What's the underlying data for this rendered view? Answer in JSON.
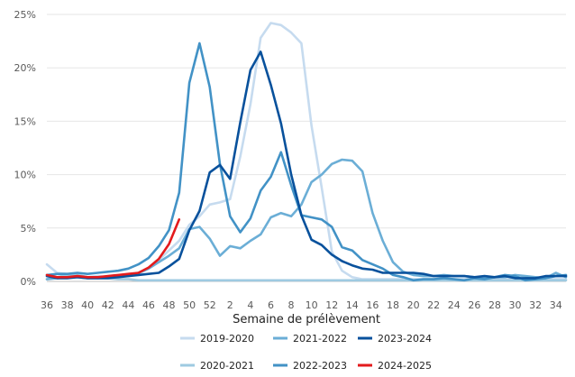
{
  "chart_data": {
    "type": "line",
    "xlabel": "Semaine de prélèvement",
    "ylabel": "",
    "ylim": [
      0,
      25
    ],
    "yticks": [
      "0%",
      "5%",
      "10%",
      "15%",
      "20%",
      "25%"
    ],
    "yticks_values": [
      0,
      5,
      10,
      15,
      20,
      25
    ],
    "x_categories": [
      "36",
      "37",
      "38",
      "39",
      "40",
      "41",
      "42",
      "43",
      "44",
      "45",
      "46",
      "47",
      "48",
      "49",
      "50",
      "51",
      "52",
      "1",
      "2",
      "3",
      "4",
      "5",
      "6",
      "7",
      "8",
      "9",
      "10",
      "11",
      "12",
      "13",
      "14",
      "15",
      "16",
      "17",
      "18",
      "19",
      "20",
      "21",
      "22",
      "23",
      "24",
      "25",
      "26",
      "27",
      "28",
      "29",
      "30",
      "31",
      "32",
      "33",
      "34",
      "35"
    ],
    "xtick_labels": [
      "36",
      "38",
      "40",
      "42",
      "44",
      "46",
      "48",
      "50",
      "52",
      "2",
      "4",
      "6",
      "8",
      "10",
      "12",
      "14",
      "16",
      "18",
      "20",
      "22",
      "24",
      "26",
      "28",
      "30",
      "32",
      "34"
    ],
    "grid": "horizontal",
    "legend_position": "bottom",
    "series": [
      {
        "name": "2019-2020",
        "color": "#c6dbef",
        "values": [
          1.6,
          0.8,
          0.7,
          0.5,
          0.4,
          0.5,
          0.4,
          0.5,
          0.5,
          0.7,
          1.2,
          2.0,
          2.9,
          3.8,
          5.3,
          6.1,
          7.2,
          7.4,
          7.7,
          11.7,
          16.6,
          22.8,
          24.2,
          24.0,
          23.3,
          22.3,
          14.6,
          8.8,
          2.8,
          1.0,
          0.4,
          0.2,
          0.2,
          0.2,
          0.2,
          0.2,
          0.2,
          0.2,
          0.2,
          0.2,
          0.2,
          0.2,
          0.2,
          0.2,
          0.2,
          0.2,
          0.2,
          0.2,
          0.2,
          0.2,
          0.2,
          0.2
        ]
      },
      {
        "name": "2020-2021",
        "color": "#9ecae1",
        "values": [
          0.2,
          0.4,
          0.6,
          0.6,
          0.4,
          0.3,
          0.3,
          0.2,
          0.2,
          0.1,
          0.1,
          0.1,
          0.1,
          0.1,
          0.1,
          0.1,
          0.1,
          0.1,
          0.1,
          0.1,
          0.1,
          0.1,
          0.1,
          0.1,
          0.1,
          0.1,
          0.1,
          0.1,
          0.1,
          0.1,
          0.1,
          0.1,
          0.1,
          0.1,
          0.1,
          0.1,
          0.1,
          0.1,
          0.1,
          0.1,
          0.1,
          0.1,
          0.1,
          0.1,
          0.1,
          0.1,
          0.1,
          0.1,
          0.1,
          0.1,
          0.1,
          0.1
        ]
      },
      {
        "name": "2021-2022",
        "color": "#6baed6",
        "values": [
          0.2,
          0.3,
          0.4,
          0.4,
          0.3,
          0.3,
          0.4,
          0.5,
          0.6,
          0.8,
          1.2,
          1.8,
          2.4,
          3.1,
          4.9,
          5.1,
          4.0,
          2.4,
          3.3,
          3.1,
          3.8,
          4.4,
          6.0,
          6.4,
          6.1,
          7.2,
          9.3,
          10.0,
          11.0,
          11.4,
          11.3,
          10.3,
          6.4,
          3.8,
          1.8,
          0.9,
          0.6,
          0.5,
          0.5,
          0.6,
          0.5,
          0.5,
          0.4,
          0.3,
          0.4,
          0.4,
          0.6,
          0.5,
          0.4,
          0.3,
          0.8,
          0.4
        ]
      },
      {
        "name": "2022-2023",
        "color": "#4292c6",
        "values": [
          0.6,
          0.7,
          0.7,
          0.8,
          0.7,
          0.8,
          0.9,
          1.0,
          1.2,
          1.6,
          2.2,
          3.3,
          4.8,
          8.3,
          18.6,
          22.3,
          18.2,
          11.0,
          6.1,
          4.6,
          5.9,
          8.5,
          9.8,
          12.1,
          9.0,
          6.2,
          6.0,
          5.8,
          5.1,
          3.2,
          2.9,
          2.0,
          1.6,
          1.2,
          0.6,
          0.4,
          0.1,
          0.2,
          0.2,
          0.3,
          0.2,
          0.1,
          0.3,
          0.2,
          0.4,
          0.6,
          0.5,
          0.1,
          0.2,
          0.3,
          0.5,
          0.6
        ]
      },
      {
        "name": "2023-2024",
        "color": "#08519c",
        "values": [
          0.5,
          0.3,
          0.3,
          0.4,
          0.3,
          0.3,
          0.3,
          0.4,
          0.5,
          0.6,
          0.7,
          0.8,
          1.4,
          2.1,
          4.8,
          6.6,
          10.2,
          10.9,
          9.6,
          14.9,
          19.8,
          21.5,
          18.4,
          14.8,
          10.0,
          6.2,
          3.9,
          3.4,
          2.5,
          1.9,
          1.5,
          1.2,
          1.1,
          0.8,
          0.8,
          0.8,
          0.8,
          0.7,
          0.5,
          0.5,
          0.5,
          0.5,
          0.4,
          0.5,
          0.4,
          0.5,
          0.3,
          0.3,
          0.3,
          0.5,
          0.5,
          0.5
        ]
      },
      {
        "name": "2024-2025",
        "color": "#e31a1c",
        "values": [
          0.6,
          0.4,
          0.4,
          0.5,
          0.4,
          0.4,
          0.5,
          0.6,
          0.7,
          0.8,
          1.3,
          2.1,
          3.5,
          5.8,
          null,
          null,
          null,
          null,
          null,
          null,
          null,
          null,
          null,
          null,
          null,
          null,
          null,
          null,
          null,
          null,
          null,
          null,
          null,
          null,
          null,
          null,
          null,
          null,
          null,
          null,
          null,
          null,
          null,
          null,
          null,
          null,
          null,
          null,
          null,
          null,
          null,
          null
        ]
      }
    ]
  }
}
